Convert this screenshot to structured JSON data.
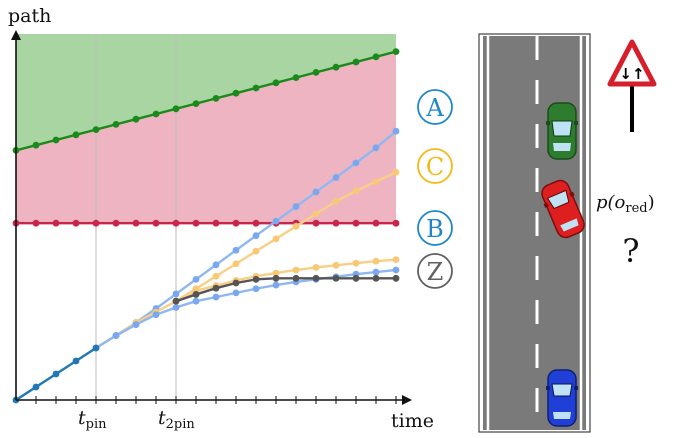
{
  "chart_data": {
    "type": "line",
    "xlabel": "time",
    "ylabel": "path",
    "x_ticks": [
      {
        "label": "t",
        "sub": "pin",
        "t": 4
      },
      {
        "label": "t",
        "sub": "2pin",
        "t": 8
      }
    ],
    "regions": [
      {
        "name": "green-region",
        "color": "#a9d5a2"
      },
      {
        "name": "red-region",
        "color": "#eeb4c2"
      }
    ],
    "series": [
      {
        "label": "green",
        "color": "#1a8a1a",
        "dot": "#1a8a1a",
        "values": [
          [
            0,
            4.8
          ],
          [
            1,
            4.9
          ],
          [
            2,
            5.0
          ],
          [
            3,
            5.1
          ],
          [
            4,
            5.2
          ],
          [
            5,
            5.3
          ],
          [
            6,
            5.4
          ],
          [
            7,
            5.5
          ],
          [
            8,
            5.6
          ],
          [
            9,
            5.7
          ],
          [
            10,
            5.8
          ],
          [
            11,
            5.9
          ],
          [
            12,
            6.0
          ],
          [
            13,
            6.1
          ],
          [
            14,
            6.2
          ],
          [
            15,
            6.3
          ],
          [
            16,
            6.4
          ],
          [
            17,
            6.5
          ],
          [
            18,
            6.6
          ],
          [
            19,
            6.7
          ]
        ]
      },
      {
        "label": "red",
        "color": "#c8254a",
        "dot": "#c8254a",
        "values": [
          [
            0,
            3.4
          ],
          [
            1,
            3.4
          ],
          [
            2,
            3.4
          ],
          [
            3,
            3.4
          ],
          [
            4,
            3.4
          ],
          [
            5,
            3.4
          ],
          [
            6,
            3.4
          ],
          [
            7,
            3.4
          ],
          [
            8,
            3.4
          ],
          [
            9,
            3.4
          ],
          [
            10,
            3.4
          ],
          [
            11,
            3.4
          ],
          [
            12,
            3.4
          ],
          [
            13,
            3.4
          ],
          [
            14,
            3.4
          ],
          [
            15,
            3.4
          ],
          [
            16,
            3.4
          ],
          [
            17,
            3.4
          ],
          [
            18,
            3.4
          ],
          [
            19,
            3.4
          ]
        ]
      },
      {
        "label": "shared",
        "color": "#1f78b4",
        "dot": "#1f78b4",
        "values": [
          [
            0,
            0
          ],
          [
            1,
            0.25
          ],
          [
            2,
            0.5
          ],
          [
            3,
            0.75
          ],
          [
            4,
            1.0
          ]
        ]
      },
      {
        "label": "A",
        "color": "#8fb8f2",
        "dot": "#7aa8ee",
        "values": [
          [
            4,
            1.0
          ],
          [
            5,
            1.24
          ],
          [
            6,
            1.49
          ],
          [
            7,
            1.76
          ],
          [
            8,
            2.04
          ],
          [
            9,
            2.32
          ],
          [
            10,
            2.6
          ],
          [
            11,
            2.88
          ],
          [
            12,
            3.16
          ],
          [
            13,
            3.44
          ],
          [
            14,
            3.72
          ],
          [
            15,
            4.0
          ],
          [
            16,
            4.28
          ],
          [
            17,
            4.56
          ],
          [
            18,
            4.85
          ],
          [
            19,
            5.17
          ]
        ]
      },
      {
        "label": "C",
        "color": "#f9cf86",
        "dot": "#f9c874",
        "values": [
          [
            4,
            1.0
          ],
          [
            5,
            1.24
          ],
          [
            6,
            1.49
          ],
          [
            7,
            1.69
          ],
          [
            8,
            1.9
          ],
          [
            9,
            2.14
          ],
          [
            10,
            2.38
          ],
          [
            11,
            2.62
          ],
          [
            12,
            2.86
          ],
          [
            13,
            3.1
          ],
          [
            14,
            3.34
          ],
          [
            15,
            3.58
          ],
          [
            16,
            3.82
          ],
          [
            17,
            4.02
          ],
          [
            18,
            4.2
          ],
          [
            19,
            4.38
          ]
        ]
      },
      {
        "label": "C2",
        "color": "#f9cf86",
        "dot": "#f9c874",
        "values": [
          [
            8,
            1.9
          ],
          [
            9,
            2.1
          ],
          [
            10,
            2.2
          ],
          [
            11,
            2.3
          ],
          [
            12,
            2.38
          ],
          [
            13,
            2.44
          ],
          [
            14,
            2.5
          ],
          [
            15,
            2.55
          ],
          [
            16,
            2.59
          ],
          [
            17,
            2.63
          ],
          [
            18,
            2.67
          ],
          [
            19,
            2.7
          ]
        ]
      },
      {
        "label": "B",
        "color": "#8fb8f2",
        "dot": "#7aa8ee",
        "values": [
          [
            4,
            1.0
          ],
          [
            5,
            1.24
          ],
          [
            6,
            1.45
          ],
          [
            7,
            1.64
          ],
          [
            8,
            1.78
          ],
          [
            9,
            1.9
          ],
          [
            10,
            1.98
          ],
          [
            11,
            2.06
          ],
          [
            12,
            2.14
          ],
          [
            13,
            2.21
          ],
          [
            14,
            2.27
          ],
          [
            15,
            2.32
          ],
          [
            16,
            2.37
          ],
          [
            17,
            2.42
          ],
          [
            18,
            2.46
          ],
          [
            19,
            2.5
          ]
        ]
      },
      {
        "label": "Z",
        "color": "#555555",
        "dot": "#555555",
        "values": [
          [
            8,
            1.9
          ],
          [
            9,
            2.03
          ],
          [
            10,
            2.15
          ],
          [
            11,
            2.25
          ],
          [
            12,
            2.32
          ],
          [
            13,
            2.34
          ],
          [
            14,
            2.34
          ],
          [
            15,
            2.34
          ],
          [
            16,
            2.34
          ],
          [
            17,
            2.34
          ],
          [
            18,
            2.34
          ],
          [
            19,
            2.34
          ]
        ]
      },
      {
        "label": "A-tail",
        "color": "#8fb8f2",
        "dot": "#7aa8ee",
        "values": [
          [
            5,
            1.24
          ],
          [
            6,
            1.45
          ]
        ]
      }
    ],
    "end_labels": [
      {
        "text": "A",
        "color": "#1f87c8"
      },
      {
        "text": "C",
        "color": "#f5b914"
      },
      {
        "text": "B",
        "color": "#1f87c8"
      },
      {
        "text": "Z",
        "color": "#606060"
      }
    ]
  },
  "scene": {
    "probability_label": "p(o",
    "probability_sub": "red",
    "probability_close": ")",
    "question_mark": "?",
    "sign_glyph": "↓↑"
  }
}
